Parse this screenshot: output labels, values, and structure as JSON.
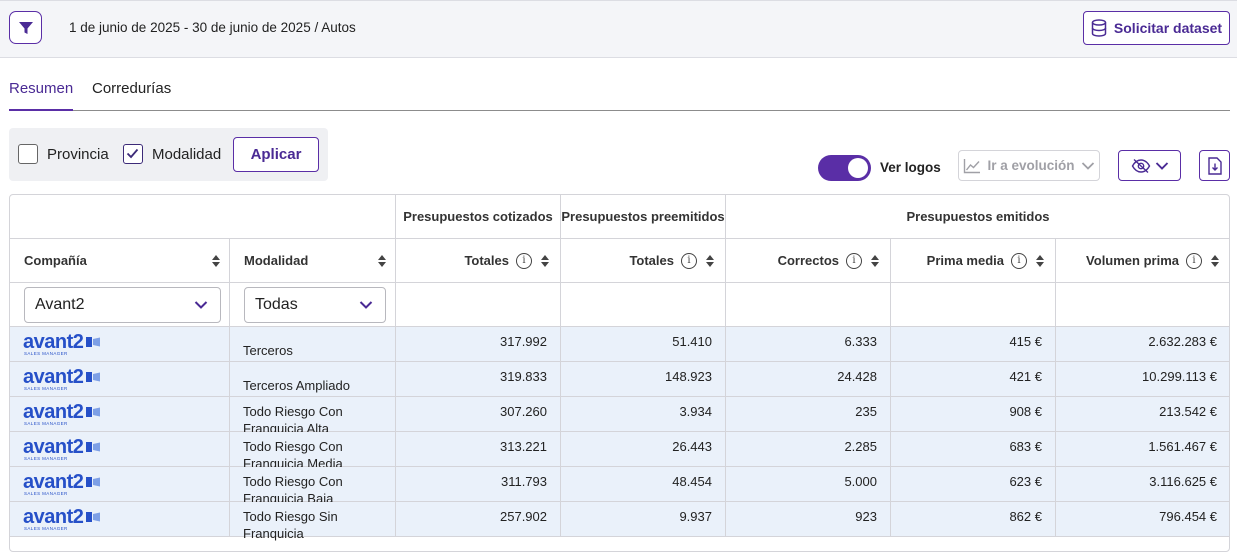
{
  "header": {
    "breadcrumb": "1 de junio de 2025 - 30 de junio de 2025 / Autos",
    "dataset_button": "Solicitar dataset"
  },
  "tabs": [
    {
      "label": "Resumen",
      "active": true
    },
    {
      "label": "Corredurías",
      "active": false
    }
  ],
  "filters": {
    "provincia_label": "Provincia",
    "provincia_checked": false,
    "modalidad_label": "Modalidad",
    "modalidad_checked": true,
    "apply_label": "Aplicar"
  },
  "toolbar": {
    "logos_label": "Ver logos",
    "logos_on": true,
    "evolution_label": "Ir a evolución"
  },
  "table": {
    "group_headers": {
      "cotizados": "Presupuestos cotizados",
      "preemitidos": "Presupuestos preemitidos",
      "emitidos": "Presupuestos emitidos"
    },
    "columns": {
      "compania": "Compañía",
      "modalidad": "Modalidad",
      "totales_cot": "Totales",
      "totales_pre": "Totales",
      "correctos": "Correctos",
      "prima_media": "Prima media",
      "volumen_prima": "Volumen prima"
    },
    "filters": {
      "compania_value": "Avant2",
      "modalidad_value": "Todas"
    },
    "logo": {
      "word": "avant2",
      "tagline": "SALES MANAGER"
    },
    "rows": [
      {
        "modalidad": "Terceros",
        "cotizados": "317.992",
        "preemitidos": "51.410",
        "correctos": "6.333",
        "prima_media": "415 €",
        "volumen_prima": "2.632.283 €"
      },
      {
        "modalidad": "Terceros Ampliado",
        "cotizados": "319.833",
        "preemitidos": "148.923",
        "correctos": "24.428",
        "prima_media": "421 €",
        "volumen_prima": "10.299.113 €"
      },
      {
        "modalidad": "Todo Riesgo Con Franquicia Alta",
        "cotizados": "307.260",
        "preemitidos": "3.934",
        "correctos": "235",
        "prima_media": "908 €",
        "volumen_prima": "213.542 €"
      },
      {
        "modalidad": "Todo Riesgo Con Franquicia Media",
        "cotizados": "313.221",
        "preemitidos": "26.443",
        "correctos": "2.285",
        "prima_media": "683 €",
        "volumen_prima": "1.561.467 €"
      },
      {
        "modalidad": "Todo Riesgo Con Franquicia Baja",
        "cotizados": "311.793",
        "preemitidos": "48.454",
        "correctos": "5.000",
        "prima_media": "623 €",
        "volumen_prima": "3.116.625 €"
      },
      {
        "modalidad": "Todo Riesgo Sin Franquicia",
        "cotizados": "257.902",
        "preemitidos": "9.937",
        "correctos": "923",
        "prima_media": "862 €",
        "volumen_prima": "796.454 €"
      }
    ]
  },
  "colors": {
    "accent": "#5a2ea6",
    "row_bg": "#eaf1fa",
    "logo_blue": "#2650c8"
  }
}
